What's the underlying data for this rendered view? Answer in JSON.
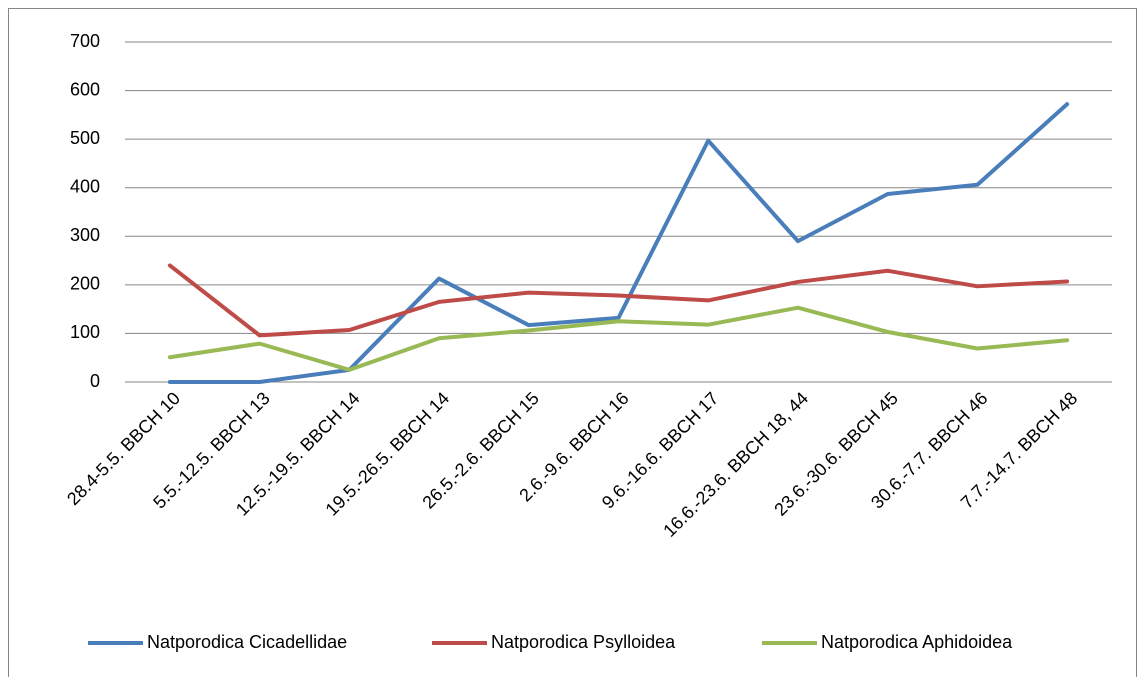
{
  "chart_data": {
    "type": "line",
    "categories": [
      "28.4-5.5. BBCH 10",
      "5.5.-12.5. BBCH 13",
      "12.5.-19.5. BBCH 14",
      "19.5.-26.5. BBCH 14",
      "26.5.-2.6. BBCH 15",
      "2.6.-9.6. BBCH 16",
      "9.6.-16.6. BBCH 17",
      "16.6.-23.6. BBCH 18, 44",
      "23.6.-30.6. BBCH 45",
      "30.6.-7.7. BBCH 46",
      "7.7.-14.7. BBCH 48"
    ],
    "series": [
      {
        "name": "Natporodica Cicadellidae",
        "color": "#4a7ebb",
        "values": [
          0,
          0,
          25,
          213,
          117,
          132,
          497,
          290,
          387,
          406,
          572
        ]
      },
      {
        "name": "Natporodica Psylloidea",
        "color": "#be4b48",
        "values": [
          240,
          96,
          107,
          165,
          184,
          178,
          168,
          206,
          229,
          197,
          207
        ]
      },
      {
        "name": "Natporodica Aphidoidea",
        "color": "#98b954",
        "values": [
          51,
          79,
          25,
          90,
          106,
          125,
          118,
          153,
          103,
          69,
          86
        ]
      }
    ],
    "ylim": [
      0,
      700
    ],
    "yticks": [
      0,
      100,
      200,
      300,
      400,
      500,
      600,
      700
    ],
    "grid": true,
    "legend": "bottom"
  }
}
